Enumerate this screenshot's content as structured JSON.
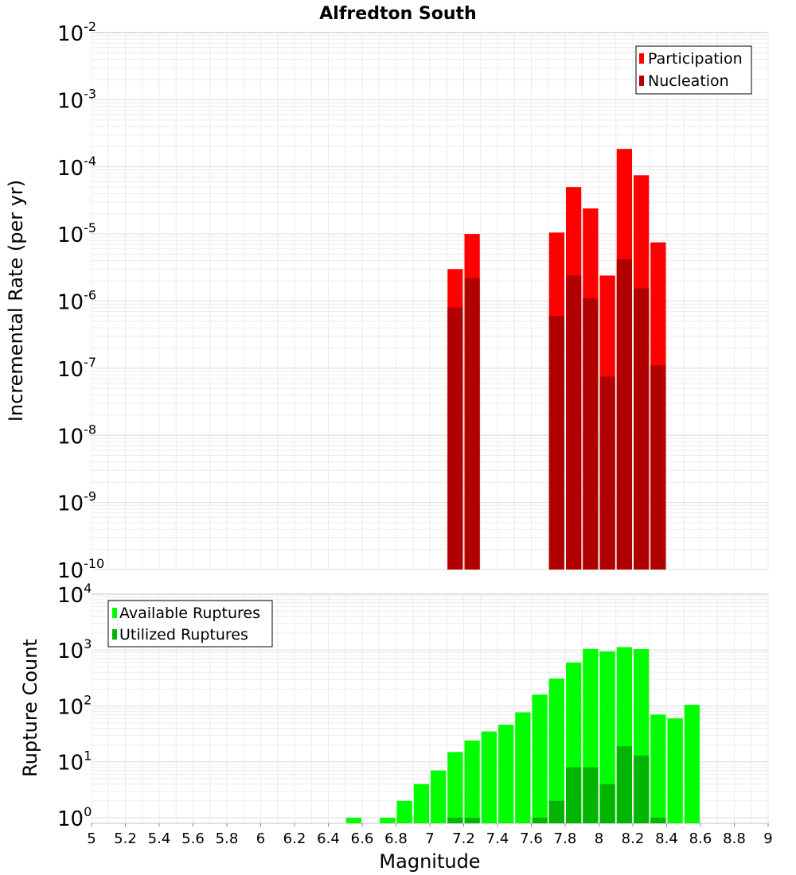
{
  "chart_data": [
    {
      "type": "bar",
      "title": "Alfredton South",
      "xlabel": "",
      "ylabel": "Incremental Rate (per yr)",
      "yscale": "log",
      "ylim_exponents": [
        -10,
        -2
      ],
      "ytick_base": "10",
      "ytick_exponents": [
        "-10",
        "-9",
        "-8",
        "-7",
        "-6",
        "-5",
        "-4",
        "-3",
        "-2"
      ],
      "xlim": [
        5,
        9
      ],
      "bar_width": 0.1,
      "grid": true,
      "legend_position": "top-right",
      "colors": {
        "participation": "#ff0000",
        "nucleation": "#b00000"
      },
      "series": [
        {
          "name": "Participation",
          "x": [
            7.15,
            7.25,
            7.75,
            7.85,
            7.95,
            8.05,
            8.15,
            8.25,
            8.35
          ],
          "values": [
            3e-06,
            1e-05,
            1.05e-05,
            5e-05,
            2.4e-05,
            2.4e-06,
            0.000185,
            7.5e-05,
            7.5e-06
          ]
        },
        {
          "name": "Nucleation",
          "x": [
            7.15,
            7.25,
            7.75,
            7.85,
            7.95,
            8.05,
            8.15,
            8.25,
            8.35
          ],
          "values": [
            8e-07,
            2.2e-06,
            6e-07,
            2.4e-06,
            1.1e-06,
            7.5e-08,
            4.2e-06,
            1.55e-06,
            1.1e-07
          ]
        }
      ]
    },
    {
      "type": "bar",
      "title": "",
      "xlabel": "Magnitude",
      "ylabel": "Rupture Count",
      "yscale": "log",
      "ylim_exponents": [
        -0.1,
        4
      ],
      "ytick_base": "10",
      "ytick_exponents": [
        "0",
        "1",
        "2",
        "3",
        "4"
      ],
      "xlim": [
        5,
        9
      ],
      "xticks": [
        "5",
        "5.2",
        "5.4",
        "5.6",
        "5.8",
        "6",
        "6.2",
        "6.4",
        "6.6",
        "6.8",
        "7",
        "7.2",
        "7.4",
        "7.6",
        "7.8",
        "8",
        "8.2",
        "8.4",
        "8.6",
        "8.8",
        "9"
      ],
      "bar_width": 0.1,
      "grid": true,
      "legend_position": "top-left",
      "colors": {
        "available": "#00ff00",
        "utilized": "#00b400"
      },
      "series": [
        {
          "name": "Available Ruptures",
          "x": [
            6.55,
            6.75,
            6.85,
            6.95,
            7.05,
            7.15,
            7.25,
            7.35,
            7.45,
            7.55,
            7.65,
            7.75,
            7.85,
            7.95,
            8.05,
            8.15,
            8.25,
            8.35,
            8.45,
            8.55
          ],
          "values": [
            1,
            1,
            2,
            4,
            7,
            15,
            24,
            35,
            46,
            77,
            160,
            310,
            600,
            1050,
            950,
            1130,
            1040,
            70,
            60,
            105
          ]
        },
        {
          "name": "Utilized Ruptures",
          "x": [
            7.15,
            7.25,
            7.65,
            7.75,
            7.85,
            7.95,
            8.05,
            8.15,
            8.25,
            8.35
          ],
          "values": [
            1,
            1,
            1,
            2,
            8,
            8,
            4,
            19,
            13,
            1
          ]
        }
      ]
    }
  ]
}
